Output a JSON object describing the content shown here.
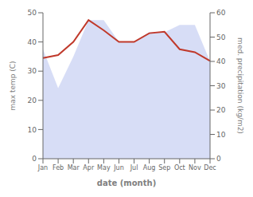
{
  "chart_data": {
    "type": "line",
    "xlabel": "date (month)",
    "ylabel": "max temp (C)",
    "y2label": "med. precipitation (kg/m2)",
    "categories": [
      "Jan",
      "Feb",
      "Mar",
      "Apr",
      "May",
      "Jun",
      "Jul",
      "Aug",
      "Sep",
      "Oct",
      "Nov",
      "Dec"
    ],
    "series": [
      {
        "type": "area",
        "axis": "y2",
        "color": "#b0bcee",
        "values": [
          45,
          29,
          42,
          57,
          57,
          48,
          48,
          52,
          52,
          55,
          55,
          40
        ]
      },
      {
        "type": "line",
        "color": "#c0392b",
        "values": [
          34.5,
          35.5,
          40.0,
          47.5,
          44.0,
          40.0,
          40.0,
          43.0,
          43.5,
          37.5,
          36.5,
          33.5
        ]
      }
    ],
    "ylim": [
      0,
      50
    ],
    "yticks": [
      0,
      10,
      20,
      30,
      40,
      50
    ],
    "y2lim": [
      0,
      60
    ],
    "y2ticks": [
      0,
      10,
      20,
      30,
      40,
      50,
      60
    ],
    "grid": false
  }
}
